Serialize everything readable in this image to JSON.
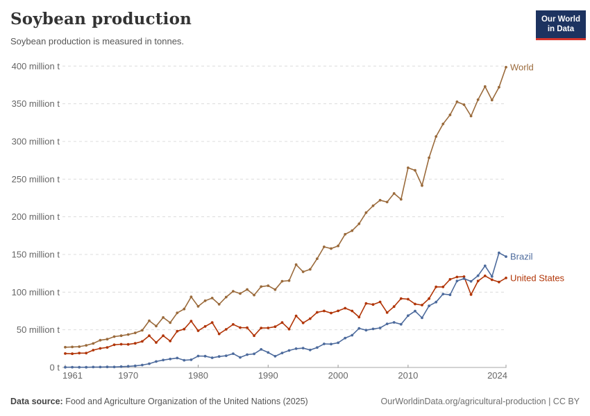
{
  "header": {
    "title": "Soybean production",
    "subtitle": "Soybean production is measured in tonnes."
  },
  "logo": {
    "line1": "Our World",
    "line2": "in Data",
    "bg_color": "#1d3360",
    "accent_color": "#d7352c"
  },
  "footer": {
    "source_label": "Data source:",
    "source_text": " Food and Agriculture Organization of the United Nations (2025)",
    "right_text": "OurWorldinData.org/agricultural-production | CC BY"
  },
  "chart_data": {
    "type": "line",
    "title": "Soybean production",
    "unit": "million tonnes",
    "grid": "dashed horizontal",
    "legend_position": "end-of-line labels",
    "ylim": [
      0,
      400
    ],
    "xlim": [
      1961,
      2024
    ],
    "x": [
      1961,
      1962,
      1963,
      1964,
      1965,
      1966,
      1967,
      1968,
      1969,
      1970,
      1971,
      1972,
      1973,
      1974,
      1975,
      1976,
      1977,
      1978,
      1979,
      1980,
      1981,
      1982,
      1983,
      1984,
      1985,
      1986,
      1987,
      1988,
      1989,
      1990,
      1991,
      1992,
      1993,
      1994,
      1995,
      1996,
      1997,
      1998,
      1999,
      2000,
      2001,
      2002,
      2003,
      2004,
      2005,
      2006,
      2007,
      2008,
      2009,
      2010,
      2011,
      2012,
      2013,
      2014,
      2015,
      2016,
      2017,
      2018,
      2019,
      2020,
      2021,
      2022,
      2023,
      2024
    ],
    "yticks": [
      {
        "value": 0,
        "label": "0 t"
      },
      {
        "value": 50,
        "label": "50 million t"
      },
      {
        "value": 100,
        "label": "100 million t"
      },
      {
        "value": 150,
        "label": "150 million t"
      },
      {
        "value": 200,
        "label": "200 million t"
      },
      {
        "value": 250,
        "label": "250 million t"
      },
      {
        "value": 300,
        "label": "300 million t"
      },
      {
        "value": 350,
        "label": "350 million t"
      },
      {
        "value": 400,
        "label": "400 million t"
      }
    ],
    "xticks": [
      {
        "value": 1961,
        "label": "1961"
      },
      {
        "value": 1970,
        "label": "1970"
      },
      {
        "value": 1980,
        "label": "1980"
      },
      {
        "value": 1990,
        "label": "1990"
      },
      {
        "value": 2000,
        "label": "2000"
      },
      {
        "value": 2010,
        "label": "2010"
      },
      {
        "value": 2024,
        "label": "2024"
      }
    ],
    "series": [
      {
        "name": "World",
        "color": "#9a6a3b",
        "values": [
          26.88,
          27.27,
          27.64,
          29.32,
          31.8,
          36.14,
          37.56,
          40.98,
          42.12,
          43.7,
          45.88,
          49.32,
          62.0,
          54.93,
          66.31,
          59.4,
          72.44,
          77.54,
          93.7,
          81.04,
          88.53,
          92.1,
          83.84,
          93.42,
          101.16,
          98.1,
          103.54,
          96.1,
          107.25,
          108.46,
          103.31,
          114.45,
          115.22,
          136.46,
          126.95,
          130.21,
          144.42,
          160.1,
          157.8,
          161.29,
          176.76,
          181.56,
          190.65,
          205.52,
          214.56,
          221.97,
          219.55,
          230.95,
          223.18,
          265.04,
          261.58,
          241.42,
          278.31,
          306.52,
          323.2,
          335.2,
          352.64,
          348.71,
          333.67,
          355.39,
          372.86,
          354.78,
          371.9,
          398.5
        ]
      },
      {
        "name": "United States",
        "color": "#b13507",
        "values": [
          18.47,
          18.23,
          19.03,
          19.08,
          23.01,
          25.27,
          26.58,
          30.13,
          30.84,
          30.68,
          32.01,
          34.58,
          42.12,
          33.1,
          42.14,
          35.07,
          48.1,
          50.86,
          61.53,
          48.77,
          54.44,
          59.61,
          44.52,
          50.64,
          57.13,
          52.87,
          52.74,
          42.15,
          52.35,
          52.42,
          54.07,
          59.61,
          50.89,
          68.44,
          59.17,
          64.78,
          73.18,
          74.98,
          72.22,
          75.06,
          78.67,
          75.01,
          66.78,
          85.02,
          83.51,
          87.0,
          72.86,
          80.75,
          91.42,
          90.66,
          84.19,
          82.79,
          91.39,
          106.88,
          106.95,
          116.93,
          120.07,
          120.51,
          96.67,
          114.75,
          121.53,
          116.38,
          113.34,
          118.8
        ]
      },
      {
        "name": "Brazil",
        "color": "#4c6a9c",
        "values": [
          0.27,
          0.35,
          0.32,
          0.3,
          0.52,
          0.59,
          0.72,
          0.65,
          1.06,
          1.51,
          2.08,
          3.22,
          5.01,
          7.88,
          9.89,
          11.23,
          12.51,
          9.54,
          10.24,
          15.16,
          15.01,
          12.84,
          14.58,
          15.54,
          18.28,
          13.33,
          16.98,
          18.02,
          24.05,
          19.9,
          14.94,
          19.21,
          22.59,
          24.93,
          25.68,
          23.17,
          26.39,
          31.31,
          30.99,
          32.73,
          39.06,
          42.77,
          51.92,
          49.55,
          51.18,
          52.46,
          57.86,
          59.83,
          57.35,
          68.76,
          74.82,
          65.85,
          81.72,
          86.76,
          97.46,
          96.39,
          114.73,
          117.89,
          114.27,
          121.8,
          134.93,
          120.7,
          152.14,
          147.1
        ]
      }
    ]
  }
}
